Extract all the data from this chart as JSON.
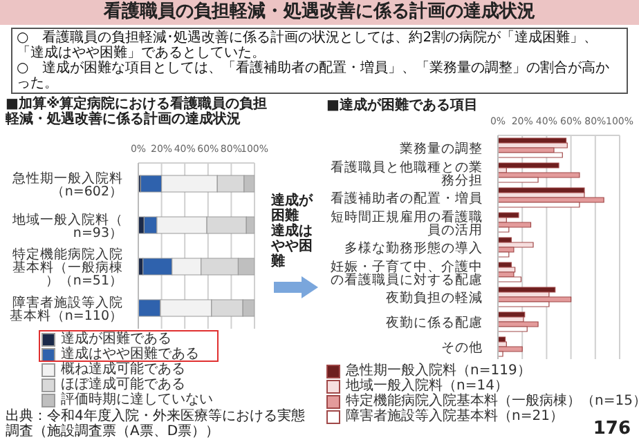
{
  "chart_data": [
    {
      "type": "bar",
      "orientation": "horizontal",
      "stacked": true,
      "title": "■加算※算定病院における看護職員の負担軽減・処遇改善に係る計画の達成状況",
      "categories": [
        "急性期一般入院料（n=602）",
        "地域一般入院料（n=93）",
        "特定機能病院入院基本料（一般病棟）（n=51）",
        "障害者施設等入院基本料（n=110）"
      ],
      "series": [
        {
          "name": "達成が困難である",
          "color": "#1b2a4a",
          "values": [
            2,
            5,
            4,
            0
          ]
        },
        {
          "name": "達成はやや困難である",
          "color": "#2f62ad",
          "values": [
            18,
            11,
            25,
            19
          ]
        },
        {
          "name": "概ね達成可能である",
          "color": "#f2f2f2",
          "values": [
            48,
            43,
            25,
            44
          ]
        },
        {
          "name": "ほぼ達成可能である",
          "color": "#d9d9d9",
          "values": [
            23,
            34,
            32,
            27
          ]
        },
        {
          "name": "評価時期に達していない",
          "color": "#bfbfbf",
          "values": [
            9,
            7,
            14,
            10
          ]
        }
      ],
      "xlim": [
        0,
        100
      ],
      "xticks": [
        {
          "value": 0,
          "label": "0%"
        },
        {
          "value": 20,
          "label": "20%"
        },
        {
          "value": 40,
          "label": "40%"
        },
        {
          "value": 60,
          "label": "60%"
        },
        {
          "value": 80,
          "label": "80%"
        },
        {
          "value": 100,
          "label": "100%"
        }
      ],
      "grid": "x",
      "legend": "bottom",
      "annotations": [
        "看護職員の負担軽減・処遇改善に係る計画の達成状況",
        "○　看護職員の負担軽減･処遇改善に係る計画の状況としては、約2割の病院が「達成困難」、「達成はやや困難」であるとしていた。",
        "○　達成が困難な項目としては、「看護補助者の配置・増員」、「業務量の調整」の割合が高かった。",
        "達成が困難",
        "達成はやや困難",
        "出典：令和4年度入院・外来医療等における実態調査（施設調査票（A票、D票））",
        "176"
      ]
    },
    {
      "type": "bar",
      "orientation": "horizontal",
      "title": "■達成が困難である項目",
      "categories": [
        "業務量の調整",
        "看護職員と他職種との業務分担",
        "看護補助者の配置・増員",
        "短時間正規雇用の看護職員の活用",
        "多様な勤務形態の導入",
        "妊娠・子育て中、介護中の看護職員に対する配慮",
        "夜勤負担の軽減",
        "夜勤に係る配慮",
        "その他"
      ],
      "series": [
        {
          "name": "急性期一般入院料（n=119）",
          "color": "#6e1f1f",
          "values": [
            56,
            50,
            71,
            17,
            11,
            11,
            47,
            22,
            6
          ]
        },
        {
          "name": "地域一般入院料（n=14）",
          "color": "#f6dede",
          "values": [
            57,
            7,
            71,
            7,
            29,
            14,
            42,
            21,
            7
          ]
        },
        {
          "name": "特定機能病院入院基本料（一般病棟）（n=15）",
          "color": "#e39b9b",
          "values": [
            46,
            67,
            87,
            27,
            13,
            13,
            60,
            33,
            20
          ]
        },
        {
          "name": "障害者施設等入院基本料（n=21）",
          "color": "#ffffff",
          "values": [
            53,
            33,
            67,
            9,
            9,
            19,
            42,
            24,
            4
          ]
        }
      ],
      "xlim": [
        0,
        100
      ],
      "xticks": [
        {
          "value": 0,
          "label": "0%"
        },
        {
          "value": 20,
          "label": "20%"
        },
        {
          "value": 40,
          "label": "40%"
        },
        {
          "value": 60,
          "label": "60%"
        },
        {
          "value": 80,
          "label": "80%"
        },
        {
          "value": 100,
          "label": "100%"
        }
      ],
      "grid": "x",
      "legend": "bottom"
    }
  ]
}
